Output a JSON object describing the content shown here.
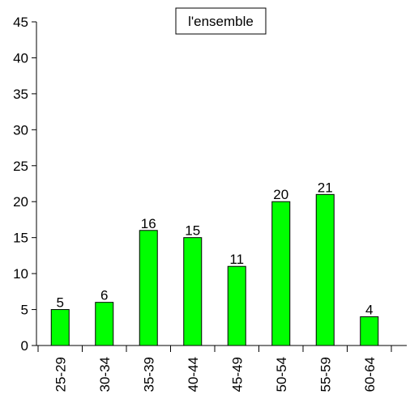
{
  "chart_data": {
    "type": "bar",
    "legend": "l'ensemble",
    "legend_position": "top-center",
    "categories": [
      "25-29",
      "30-34",
      "35-39",
      "40-44",
      "45-49",
      "50-54",
      "55-59",
      "60-64"
    ],
    "values": [
      5,
      6,
      16,
      15,
      11,
      20,
      21,
      4
    ],
    "ylim": [
      0,
      45
    ],
    "yticks": [
      0,
      5,
      10,
      15,
      20,
      25,
      30,
      35,
      40,
      45
    ],
    "bar_color": "#00ff00",
    "bar_edge_color": "#000000",
    "grid": false,
    "data_labels": true
  }
}
